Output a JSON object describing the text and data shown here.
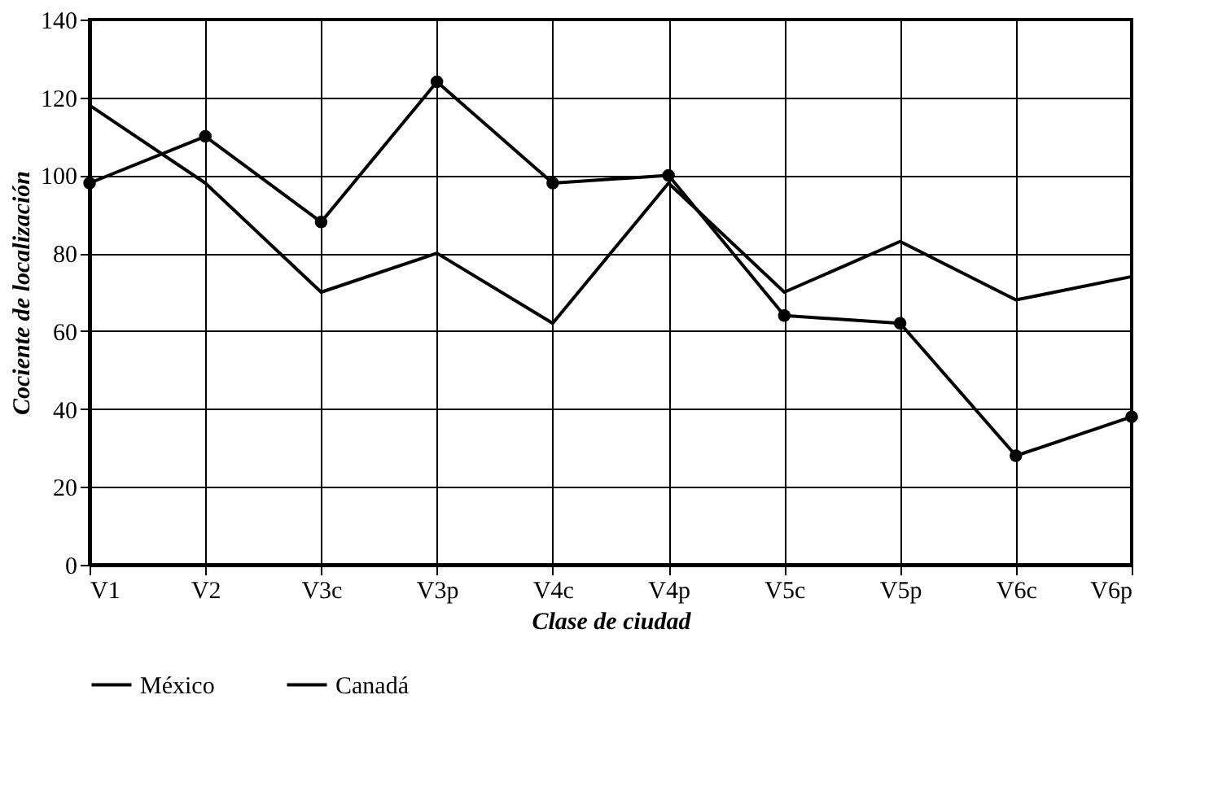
{
  "chart_data": {
    "type": "line",
    "xlabel": "Clase de ciudad",
    "ylabel": "Cociente de localización",
    "categories": [
      "V1",
      "V2",
      "V3c",
      "V3p",
      "V4c",
      "V4p",
      "V5c",
      "V5p",
      "V6c",
      "V6p"
    ],
    "series": [
      {
        "name": "México",
        "color": "#000000",
        "marker": "circle",
        "values": [
          98,
          110,
          88,
          124,
          98,
          100,
          64,
          62,
          28,
          38
        ]
      },
      {
        "name": "Canadá",
        "color": "#000000",
        "marker": "none",
        "values": [
          118,
          98,
          70,
          80,
          62,
          98,
          70,
          83,
          68,
          74
        ]
      }
    ],
    "ylim": [
      0,
      140
    ],
    "yticks": [
      0,
      20,
      40,
      60,
      80,
      100,
      120,
      140
    ],
    "grid": true,
    "legend": "bottom",
    "line_style": "solid"
  }
}
